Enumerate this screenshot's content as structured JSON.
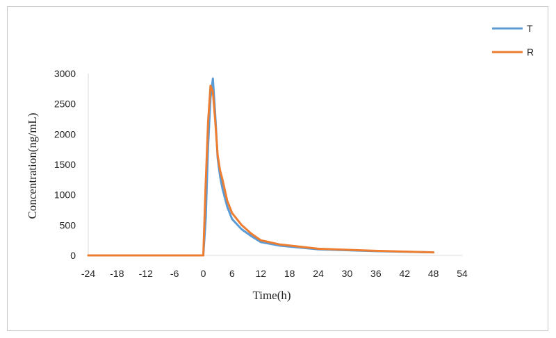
{
  "chart_data": {
    "type": "line",
    "title": "",
    "xlabel": "Time(h)",
    "ylabel": "Concentration(ng/mL)",
    "xlim": [
      -24,
      54
    ],
    "ylim": [
      0,
      3000
    ],
    "x_ticks": [
      -24,
      -18,
      -12,
      -6,
      0,
      6,
      12,
      18,
      24,
      30,
      36,
      42,
      48,
      54
    ],
    "y_ticks": [
      0,
      500,
      1000,
      1500,
      2000,
      2500,
      3000
    ],
    "grid": false,
    "legend_position": "top-right",
    "series": [
      {
        "name": "T",
        "color": "#5b9bd5",
        "x": [
          -24,
          0,
          0.5,
          1,
          1.5,
          2,
          2.5,
          3,
          3.5,
          4,
          5,
          6,
          8,
          10,
          12,
          16,
          24,
          36,
          48
        ],
        "y": [
          0,
          0,
          600,
          1800,
          2600,
          2920,
          2300,
          1600,
          1300,
          1100,
          800,
          600,
          430,
          320,
          220,
          160,
          100,
          70,
          50
        ]
      },
      {
        "name": "R",
        "color": "#ed7d31",
        "x": [
          -24,
          0,
          0.5,
          1,
          1.5,
          2,
          2.5,
          3,
          3.5,
          4,
          5,
          6,
          8,
          10,
          12,
          16,
          24,
          36,
          48
        ],
        "y": [
          0,
          0,
          1200,
          2200,
          2800,
          2700,
          2200,
          1650,
          1400,
          1250,
          900,
          700,
          500,
          360,
          250,
          180,
          110,
          75,
          50
        ]
      }
    ]
  }
}
